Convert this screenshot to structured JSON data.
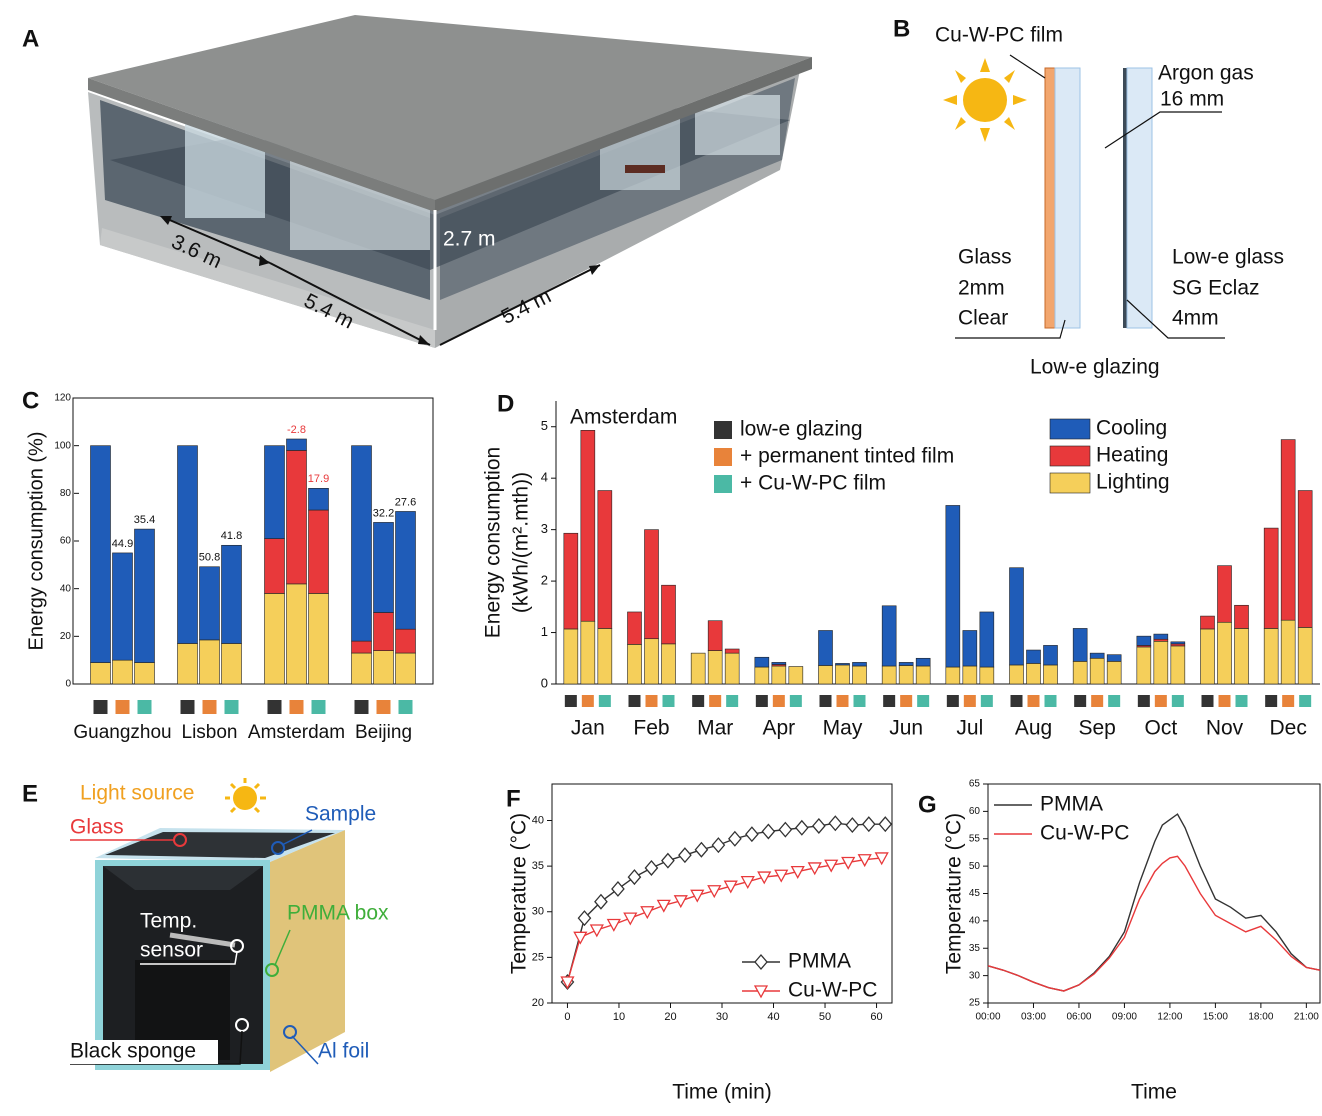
{
  "panel_labels": [
    "A",
    "B",
    "C",
    "D",
    "E",
    "F",
    "G"
  ],
  "panel_a": {
    "dimensions": [
      "3.6 m",
      "5.4 m",
      "5.4 m",
      "2.7 m"
    ]
  },
  "panel_b": {
    "film": "Cu-W-PC film",
    "gas": [
      "Argon gas",
      "16 mm"
    ],
    "glass": [
      "Glass",
      "2mm",
      "Clear"
    ],
    "low_e": [
      "Low-e glass",
      "SG Eclaz",
      "4mm"
    ],
    "caption": "Low-e glazing"
  },
  "panel_e": {
    "light_source": "Light source",
    "glass": "Glass",
    "sample": "Sample",
    "pmma_box": "PMMA box",
    "sensor": [
      "Temp.",
      "sensor"
    ],
    "sponge": "Black sponge",
    "foil": "Al foil"
  },
  "chart_data": [
    {
      "type": "bar",
      "ylabel": "Energy consumption (%)",
      "categories": [
        "Guangzhou",
        "Lisbon",
        "Amsterdam",
        "Beijing"
      ],
      "group_colors": [
        "#333333",
        "#e8833a",
        "#4bb9a5"
      ],
      "ylim": [
        0,
        120
      ],
      "yticks": [
        0,
        20,
        40,
        60,
        80,
        100,
        120
      ],
      "series": [
        {
          "color": "#f5cf5a",
          "values": [
            [
              9,
              10,
              9
            ],
            [
              17,
              18.5,
              17
            ],
            [
              38,
              42,
              38
            ],
            [
              13,
              14,
              13
            ]
          ]
        },
        {
          "color": "#e8393b",
          "values": [
            [
              0,
              0,
              0
            ],
            [
              0,
              0,
              0
            ],
            [
              23,
              56,
              35
            ],
            [
              5,
              16,
              10
            ]
          ]
        },
        {
          "color": "#1f5cb8",
          "values": [
            [
              91,
              45,
              56
            ],
            [
              83,
              30.7,
              41.2
            ],
            [
              39,
              4.8,
              9.1
            ],
            [
              82,
              37.8,
              49.4
            ]
          ]
        }
      ],
      "savings": [
        [
          null,
          44.9,
          35.4
        ],
        [
          null,
          50.8,
          41.8
        ],
        [
          null,
          -2.8,
          17.9
        ],
        [
          null,
          32.2,
          27.6
        ]
      ],
      "savings_colors": [
        "#111111",
        "#111111",
        "#e8393b",
        "#111111"
      ]
    },
    {
      "type": "bar",
      "annotation": "Amsterdam",
      "ylabel": [
        "Energy consumption",
        "(kWh/(m².mth))"
      ],
      "categories": [
        "Jan",
        "Feb",
        "Mar",
        "Apr",
        "May",
        "Jun",
        "Jul",
        "Aug",
        "Sep",
        "Oct",
        "Nov",
        "Dec"
      ],
      "groups": [
        "low-e glazing",
        "+ permanent tinted film",
        "+ Cu-W-PC film"
      ],
      "group_colors": [
        "#333333",
        "#e8833a",
        "#4bb9a5"
      ],
      "ylim": [
        0,
        5.5
      ],
      "yticks": [
        0,
        1,
        2,
        3,
        4,
        5
      ],
      "series": [
        {
          "name": "Lighting",
          "color": "#f5cf5a",
          "values": [
            [
              1.07,
              1.22,
              1.08
            ],
            [
              0.77,
              0.88,
              0.78
            ],
            [
              0.6,
              0.65,
              0.6
            ],
            [
              0.33,
              0.35,
              0.34
            ],
            [
              0.36,
              0.37,
              0.35
            ],
            [
              0.35,
              0.36,
              0.35
            ],
            [
              0.33,
              0.35,
              0.33
            ],
            [
              0.37,
              0.4,
              0.37
            ],
            [
              0.44,
              0.5,
              0.44
            ],
            [
              0.72,
              0.83,
              0.74
            ],
            [
              1.07,
              1.2,
              1.08
            ],
            [
              1.08,
              1.24,
              1.1
            ]
          ]
        },
        {
          "name": "Heating",
          "color": "#e8393b",
          "values": [
            [
              1.86,
              3.71,
              2.68
            ],
            [
              0.63,
              2.12,
              1.14
            ],
            [
              0,
              0.58,
              0.08
            ],
            [
              0,
              0.03,
              0
            ],
            [
              0,
              0,
              0
            ],
            [
              0,
              0,
              0
            ],
            [
              0,
              0,
              0
            ],
            [
              0,
              0,
              0
            ],
            [
              0,
              0,
              0
            ],
            [
              0.03,
              0.04,
              0.04
            ],
            [
              0.25,
              1.1,
              0.45
            ],
            [
              1.95,
              3.51,
              2.66
            ]
          ]
        },
        {
          "name": "Cooling",
          "color": "#1f5cb8",
          "values": [
            [
              0,
              0,
              0
            ],
            [
              0,
              0,
              0
            ],
            [
              0,
              0,
              0
            ],
            [
              0.19,
              0.04,
              0
            ],
            [
              0.68,
              0.03,
              0.07
            ],
            [
              1.17,
              0.06,
              0.15
            ],
            [
              3.14,
              0.69,
              1.07
            ],
            [
              1.89,
              0.26,
              0.38
            ],
            [
              0.64,
              0.1,
              0.13
            ],
            [
              0.18,
              0.1,
              0.04
            ],
            [
              0,
              0,
              0
            ],
            [
              0,
              0,
              0
            ]
          ]
        }
      ]
    },
    {
      "type": "line",
      "xlabel": "Time (min)",
      "ylabel": "Temperature (°C)",
      "xlim": [
        -3,
        63
      ],
      "xticks": [
        0,
        10,
        20,
        30,
        40,
        50,
        60
      ],
      "ylim": [
        20,
        44
      ],
      "yticks": [
        20,
        25,
        30,
        35,
        40
      ],
      "series": [
        {
          "name": "PMMA",
          "color": "#333333",
          "marker": "diamond",
          "x": [
            0,
            3.3,
            6.5,
            9.8,
            13,
            16.3,
            19.5,
            22.8,
            26,
            29.3,
            32.5,
            35.8,
            39,
            42.3,
            45.5,
            48.8,
            52,
            55.3,
            58.5,
            61.7
          ],
          "values": [
            22.3,
            29.3,
            31.1,
            32.5,
            33.8,
            34.8,
            35.6,
            36.2,
            36.8,
            37.3,
            38,
            38.5,
            38.8,
            39,
            39.2,
            39.4,
            39.7,
            39.5,
            39.6,
            39.6
          ]
        },
        {
          "name": "Cu-W-PC",
          "color": "#e8393b",
          "marker": "triangle",
          "x": [
            0,
            2.5,
            5.7,
            9,
            12.2,
            15.5,
            18.7,
            22,
            25.2,
            28.5,
            31.7,
            35,
            38.2,
            41.5,
            44.7,
            48,
            51.2,
            54.5,
            57.7,
            61
          ],
          "values": [
            22.3,
            27.2,
            28,
            28.6,
            29.3,
            30,
            30.7,
            31.2,
            31.8,
            32.3,
            32.8,
            33.3,
            33.8,
            34,
            34.4,
            34.8,
            35.1,
            35.4,
            35.7,
            35.9
          ]
        }
      ]
    },
    {
      "type": "line",
      "xlabel": "Time",
      "ylabel": "Temperature (°C)",
      "xlim": [
        0,
        21.9
      ],
      "xticks": [
        {
          "value": 0,
          "label": "00:00"
        },
        {
          "value": 3,
          "label": "03:00"
        },
        {
          "value": 6,
          "label": "06:00"
        },
        {
          "value": 9,
          "label": "09:00"
        },
        {
          "value": 12,
          "label": "12:00"
        },
        {
          "value": 15,
          "label": "15:00"
        },
        {
          "value": 18,
          "label": "18:00"
        },
        {
          "value": 21,
          "label": "21:00"
        }
      ],
      "ylim": [
        25,
        65
      ],
      "yticks": [
        25,
        30,
        35,
        40,
        45,
        50,
        55,
        60,
        65
      ],
      "series": [
        {
          "name": "PMMA",
          "color": "#333333",
          "x": [
            0,
            1,
            2,
            3,
            4,
            5,
            6,
            7,
            8,
            9,
            10,
            11,
            11.5,
            12,
            12.5,
            13,
            14,
            15,
            16,
            17,
            18,
            19,
            20,
            21,
            21.9
          ],
          "values": [
            31.8,
            31,
            30,
            28.8,
            27.8,
            27.2,
            28.3,
            30.5,
            33.5,
            38,
            47,
            54.5,
            57.5,
            58.5,
            59.5,
            57,
            50,
            44,
            42.5,
            40.5,
            41,
            38,
            34,
            31.5,
            31
          ]
        },
        {
          "name": "Cu-W-PC",
          "color": "#e8393b",
          "x": [
            0,
            1,
            2,
            3,
            4,
            5,
            6,
            7,
            8,
            9,
            10,
            11,
            11.5,
            12,
            12.5,
            13,
            14,
            15,
            16,
            17,
            18,
            19,
            20,
            21,
            21.9
          ],
          "values": [
            31.8,
            31,
            30,
            28.8,
            27.8,
            27.2,
            28.3,
            30.3,
            33.2,
            37,
            44,
            49,
            50.5,
            51.5,
            51.8,
            50,
            45,
            41,
            39.5,
            38,
            39,
            36.5,
            33.5,
            31.5,
            31
          ]
        }
      ]
    }
  ]
}
